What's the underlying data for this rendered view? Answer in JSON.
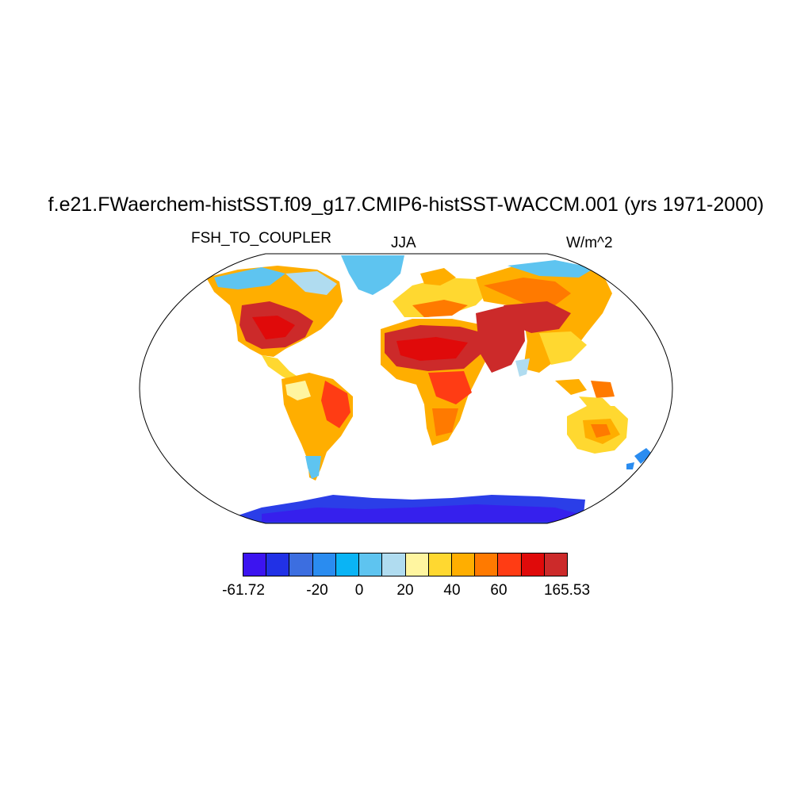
{
  "map": {
    "title": "f.e21.FWaerchem-histSST.f09_g17.CMIP6-histSST-WACCM.001 (yrs 1971-2000)",
    "variable": "FSH_TO_COUPLER",
    "season": "JJA",
    "units": "W/m^2",
    "projection": "Robinson",
    "colorbar": {
      "colors": [
        "#3c14f0",
        "#2131e6",
        "#3c6ee0",
        "#2a8cf0",
        "#0ab4f5",
        "#5ec4f0",
        "#b0dcf0",
        "#fff5a0",
        "#ffd830",
        "#ffae00",
        "#ff7a00",
        "#ff3c14",
        "#e00a0a",
        "#cc2a2a"
      ],
      "labels": [
        "-61.72",
        "-20",
        "0",
        "20",
        "40",
        "60",
        "165.53"
      ]
    }
  }
}
